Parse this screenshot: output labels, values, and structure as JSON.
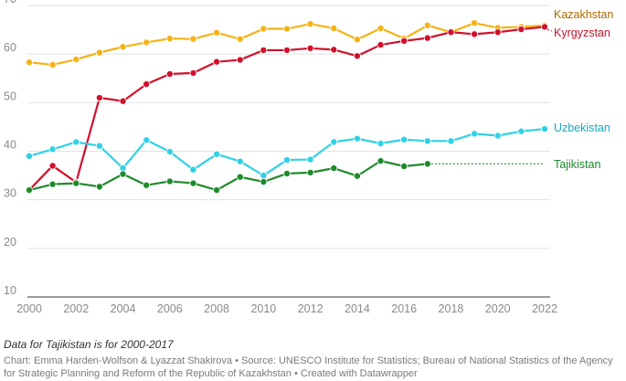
{
  "chart_data": {
    "type": "line",
    "x": [
      2000,
      2001,
      2002,
      2003,
      2004,
      2005,
      2006,
      2007,
      2008,
      2009,
      2010,
      2011,
      2012,
      2013,
      2014,
      2015,
      2016,
      2017,
      2018,
      2019,
      2020,
      2021,
      2022
    ],
    "xlim": [
      2000,
      2022
    ],
    "ylim": [
      10,
      70
    ],
    "y_ticks": [
      10,
      20,
      30,
      40,
      50,
      60,
      70
    ],
    "x_ticks": [
      2000,
      2002,
      2004,
      2006,
      2008,
      2010,
      2012,
      2014,
      2016,
      2018,
      2020,
      2022
    ],
    "grid": "horizontal",
    "legend": "direct labels at right end of lines",
    "series": [
      {
        "name": "Kazakhstan",
        "color": "#f5b316",
        "label_color": "#a86a00",
        "values": [
          58.3,
          57.8,
          58.9,
          60.3,
          61.5,
          62.4,
          63.2,
          63.1,
          64.4,
          63.1,
          65.2,
          65.2,
          66.2,
          65.3,
          63.0,
          65.3,
          63.2,
          65.9,
          64.5,
          66.4,
          65.4,
          65.6,
          65.9
        ]
      },
      {
        "name": "Kyrgyzstan",
        "color": "#d0102b",
        "label_color": "#c4102a",
        "values": [
          32.0,
          37.0,
          33.6,
          51.0,
          50.3,
          53.8,
          55.9,
          56.1,
          58.4,
          58.8,
          60.8,
          60.8,
          61.2,
          60.9,
          59.6,
          61.9,
          62.7,
          63.3,
          64.5,
          64.1,
          64.5,
          65.1,
          65.6
        ]
      },
      {
        "name": "Uzbekistan",
        "color": "#2fd1e6",
        "label_color": "#1ba6bf",
        "values": [
          39.0,
          40.4,
          41.9,
          41.1,
          36.5,
          42.3,
          39.9,
          36.2,
          39.4,
          37.9,
          35.0,
          38.2,
          38.3,
          41.9,
          42.6,
          41.6,
          42.4,
          42.1,
          42.1,
          43.6,
          43.2,
          44.1,
          44.6
        ]
      },
      {
        "name": "Tajikistan",
        "color": "#1f8a2c",
        "label_color": "#1f8a2c",
        "values": [
          32.0,
          33.2,
          33.4,
          32.7,
          35.3,
          33.0,
          33.8,
          33.4,
          32.0,
          34.7,
          33.7,
          35.4,
          35.6,
          36.5,
          34.9,
          38.0,
          36.9,
          37.4,
          null,
          null,
          null,
          null,
          null
        ],
        "extension": "dotted line from 2017 value to right edge"
      }
    ]
  },
  "footer": {
    "note": "Data for Tajikistan is for 2000-2017",
    "credit": "Chart: Emma Harden-Wolfson & Lyazzat Shakirova • Source: UNESCO Institute for Statistics; Bureau of National Statistics of the Agency for Strategic Planning and Reform of the Republic of Kazakhstan • Created with Datawrapper"
  }
}
